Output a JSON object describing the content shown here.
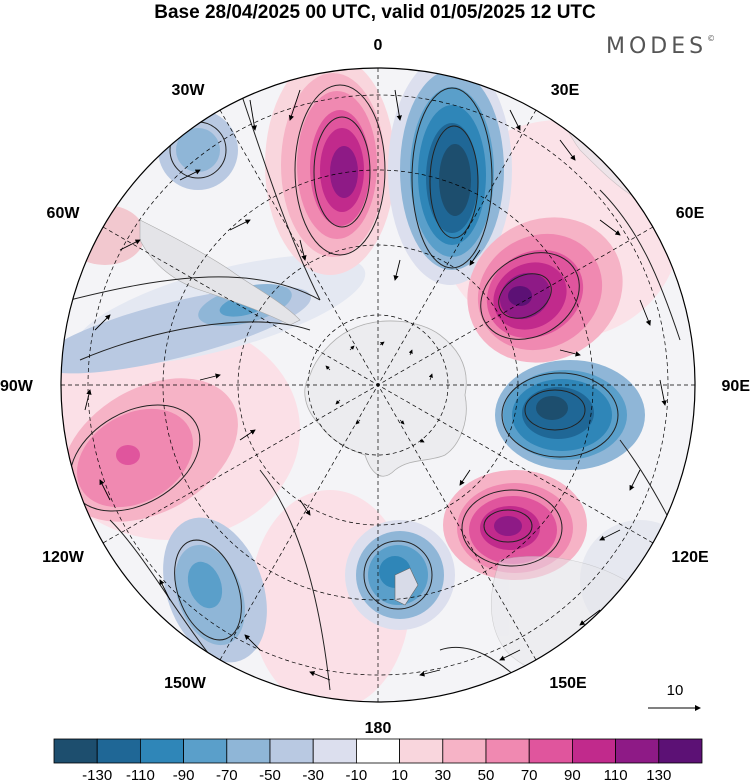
{
  "header": {
    "title": "Base 28/04/2025 00 UTC, valid 01/05/2025 12 UTC",
    "brand": "MODES",
    "brand_mark": "©"
  },
  "map": {
    "projection": "south-polar-stereographic",
    "longitude_labels": {
      "top": "0",
      "bottom": "180",
      "left": "90W",
      "right": "90E",
      "upper_left_1": "30W",
      "upper_left_2": "60W",
      "upper_right_1": "30E",
      "upper_right_2": "60E",
      "lower_left_1": "120W",
      "lower_left_2": "150W",
      "lower_right_1": "120E",
      "lower_right_2": "150E"
    },
    "reference_vector": "10"
  },
  "colorbar": {
    "labels": [
      "-130",
      "-110",
      "-90",
      "-70",
      "-50",
      "-30",
      "-10",
      "10",
      "30",
      "50",
      "70",
      "90",
      "110",
      "130"
    ],
    "colors": [
      "#1d4e6e",
      "#1f6796",
      "#2f86b8",
      "#5a9fca",
      "#8fb6d7",
      "#b9c9e2",
      "#dcdfee",
      "#ffffff",
      "#f9d6dd",
      "#f6b3c6",
      "#f089b1",
      "#e0559d",
      "#c12a8c",
      "#8e1a86",
      "#5c1175"
    ]
  }
}
